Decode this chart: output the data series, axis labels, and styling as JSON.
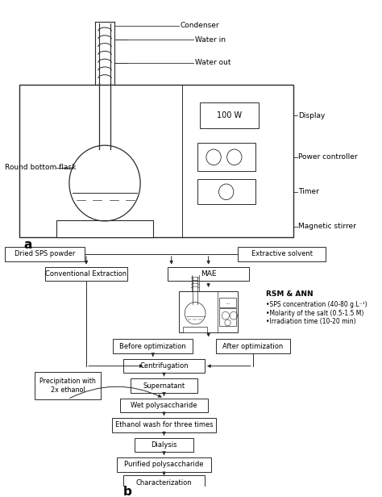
{
  "bg_color": "#ffffff",
  "line_color": "#2a2a2a",
  "text_color": "#000000",
  "title_a": "a",
  "title_b": "b",
  "condenser_label": "Condenser",
  "water_in_label": "Water in",
  "water_out_label": "Water out",
  "round_bottom_flask_label": "Round bottom flask",
  "display_label": "Display",
  "power_controller_label": "Power controller",
  "timer_label": "Timer",
  "magnetic_stirrer_label": "Magnetic stirrer",
  "100w_label": "100 W",
  "dried_sps": "Dried SPS powder",
  "extractive_solvent": "Extractive solvent",
  "conventional_extraction": "Conventional Extraction",
  "mae": "MAE",
  "rsm_ann": "RSM & ANN",
  "bullet1": "•SPS concentration (40-80 g.L⁻¹)",
  "bullet2": "•Molarity of the salt (0.5-1.5 M)",
  "bullet3": "•Irradiation time (10-20 min)",
  "before_opt": "Before optimization",
  "after_opt": "After optimization",
  "centrifugation": "Centrifugation",
  "precipitation": "Precipitation with\n2x ethanol",
  "supernatant": "Supernatant",
  "wet_poly": "Wet polysaccharide",
  "ethanol_wash": "Ethanol wash for three times",
  "dialysis": "Dialysis",
  "purified": "Purified polysaccharide",
  "characterization": "Characterization"
}
